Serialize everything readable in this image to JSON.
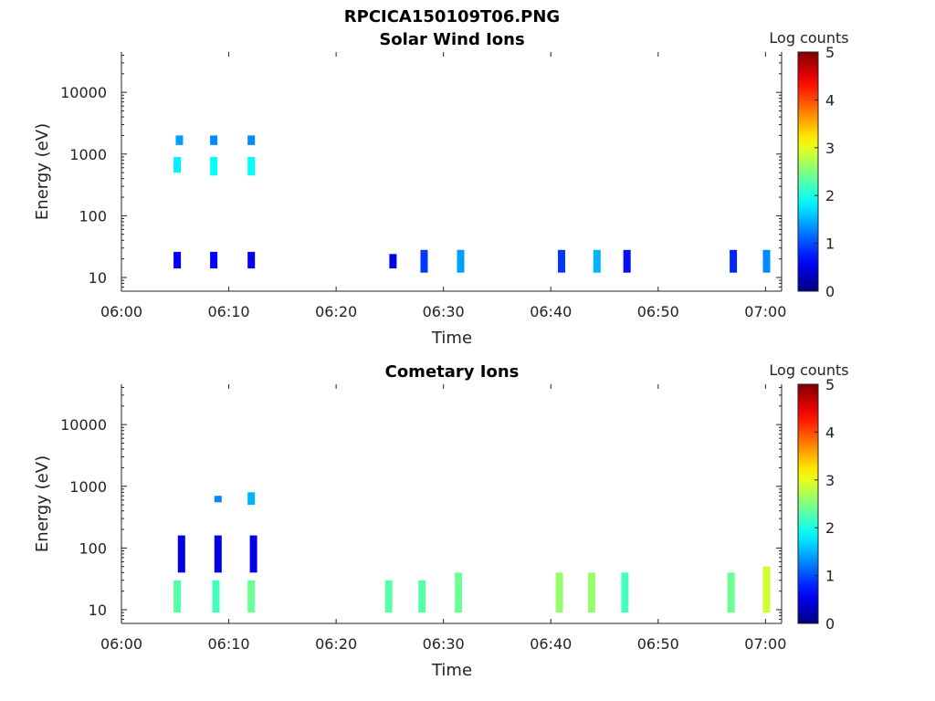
{
  "chart_data": {
    "type": "heatmap",
    "title": "RPCICA150109T06.PNG",
    "colormap": "jet",
    "x_ticks": [
      "06:00",
      "06:10",
      "06:20",
      "06:30",
      "06:40",
      "06:50",
      "07:00"
    ],
    "x_tick_minutes": [
      0,
      10,
      20,
      30,
      40,
      50,
      60
    ],
    "xlim_minutes": [
      0,
      61.5
    ],
    "xlabel": "Time",
    "ylabel": "Energy (eV)",
    "y_scale": "log",
    "ylim": [
      6,
      45000
    ],
    "y_ticks": [
      10,
      100,
      1000,
      10000
    ],
    "y_tick_labels": [
      "10",
      "100",
      "1000",
      "10000"
    ],
    "colorbar": {
      "label": "Log counts",
      "min": 0,
      "max": 5,
      "ticks": [
        "0",
        "1",
        "2",
        "3",
        "4",
        "5"
      ]
    },
    "panels": [
      {
        "title": "Solar Wind Ions",
        "blocks": [
          {
            "t": 5.2,
            "e_lo": 14,
            "e_hi": 26,
            "v": 0.6
          },
          {
            "t": 5.2,
            "e_lo": 500,
            "e_hi": 900,
            "v": 1.8
          },
          {
            "t": 5.4,
            "e_lo": 1400,
            "e_hi": 2000,
            "v": 1.4
          },
          {
            "t": 8.6,
            "e_lo": 14,
            "e_hi": 26,
            "v": 0.6
          },
          {
            "t": 8.6,
            "e_lo": 450,
            "e_hi": 900,
            "v": 1.9
          },
          {
            "t": 8.6,
            "e_lo": 1400,
            "e_hi": 2000,
            "v": 1.3
          },
          {
            "t": 12.1,
            "e_lo": 14,
            "e_hi": 26,
            "v": 0.6
          },
          {
            "t": 12.1,
            "e_lo": 450,
            "e_hi": 900,
            "v": 1.9
          },
          {
            "t": 12.1,
            "e_lo": 1400,
            "e_hi": 2000,
            "v": 1.3
          },
          {
            "t": 25.3,
            "e_lo": 14,
            "e_hi": 24,
            "v": 0.5
          },
          {
            "t": 28.2,
            "e_lo": 12,
            "e_hi": 28,
            "v": 0.9
          },
          {
            "t": 31.6,
            "e_lo": 12,
            "e_hi": 28,
            "v": 1.4
          },
          {
            "t": 41.0,
            "e_lo": 12,
            "e_hi": 28,
            "v": 0.9
          },
          {
            "t": 44.3,
            "e_lo": 12,
            "e_hi": 28,
            "v": 1.5
          },
          {
            "t": 47.1,
            "e_lo": 12,
            "e_hi": 28,
            "v": 0.7
          },
          {
            "t": 57.0,
            "e_lo": 12,
            "e_hi": 28,
            "v": 0.8
          },
          {
            "t": 60.1,
            "e_lo": 12,
            "e_hi": 28,
            "v": 1.3
          }
        ]
      },
      {
        "title": "Cometary Ions",
        "blocks": [
          {
            "t": 5.2,
            "e_lo": 9,
            "e_hi": 30,
            "v": 2.3
          },
          {
            "t": 5.6,
            "e_lo": 40,
            "e_hi": 160,
            "v": 0.5
          },
          {
            "t": 8.8,
            "e_lo": 9,
            "e_hi": 30,
            "v": 2.2
          },
          {
            "t": 9.0,
            "e_lo": 40,
            "e_hi": 160,
            "v": 0.5
          },
          {
            "t": 9.0,
            "e_lo": 550,
            "e_hi": 700,
            "v": 1.3
          },
          {
            "t": 12.1,
            "e_lo": 9,
            "e_hi": 30,
            "v": 2.4
          },
          {
            "t": 12.3,
            "e_lo": 40,
            "e_hi": 160,
            "v": 0.5
          },
          {
            "t": 12.1,
            "e_lo": 500,
            "e_hi": 800,
            "v": 1.5
          },
          {
            "t": 24.9,
            "e_lo": 9,
            "e_hi": 30,
            "v": 2.3
          },
          {
            "t": 28.0,
            "e_lo": 9,
            "e_hi": 30,
            "v": 2.3
          },
          {
            "t": 31.4,
            "e_lo": 9,
            "e_hi": 40,
            "v": 2.4
          },
          {
            "t": 40.8,
            "e_lo": 9,
            "e_hi": 40,
            "v": 2.6
          },
          {
            "t": 43.8,
            "e_lo": 9,
            "e_hi": 40,
            "v": 2.6
          },
          {
            "t": 46.9,
            "e_lo": 9,
            "e_hi": 40,
            "v": 2.2
          },
          {
            "t": 56.8,
            "e_lo": 9,
            "e_hi": 40,
            "v": 2.4
          },
          {
            "t": 60.1,
            "e_lo": 9,
            "e_hi": 50,
            "v": 2.9
          }
        ]
      }
    ]
  }
}
